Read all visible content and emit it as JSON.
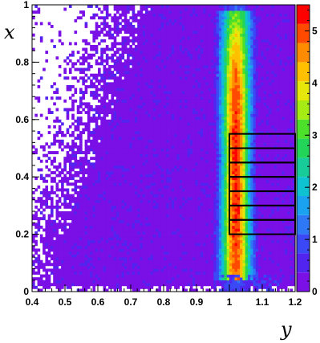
{
  "chart_data": {
    "type": "heatmap",
    "title": "",
    "xlabel": "y",
    "ylabel": "x",
    "xlim": [
      0.4,
      1.2
    ],
    "ylim": [
      0,
      1
    ],
    "x_ticks": [
      "0.4",
      "0.5",
      "0.6",
      "0.7",
      "0.8",
      "0.9",
      "1",
      "1.1",
      "1.2"
    ],
    "y_ticks": [
      "0",
      "0.2",
      "0.4",
      "0.6",
      "0.8",
      "1"
    ],
    "z_scale": "log",
    "z_range": [
      0,
      5.5
    ],
    "z_ticks": [
      "0",
      "1",
      "2",
      "3",
      "4",
      "5"
    ],
    "palette": [
      "#ffffff",
      "#7a0fe6",
      "#5224f0",
      "#3a48f5",
      "#2f78f5",
      "#1aa2f0",
      "#0fc2d2",
      "#18cc9a",
      "#22d458",
      "#4de02a",
      "#a6ec14",
      "#e6e60a",
      "#ffc000",
      "#ff8c00",
      "#ff4a00",
      "#ff0000"
    ],
    "background_fill": "#5a1cf0",
    "ridge": {
      "y_center": 1.02,
      "x_range": [
        0.03,
        0.98
      ],
      "peak_log_count": 5.2
    },
    "overlay_boxes": [
      {
        "y_range": [
          1.0,
          1.2
        ],
        "x_range": [
          0.2,
          0.25
        ]
      },
      {
        "y_range": [
          1.0,
          1.2
        ],
        "x_range": [
          0.25,
          0.3
        ]
      },
      {
        "y_range": [
          1.0,
          1.2
        ],
        "x_range": [
          0.3,
          0.35
        ]
      },
      {
        "y_range": [
          1.0,
          1.2
        ],
        "x_range": [
          0.35,
          0.4
        ]
      },
      {
        "y_range": [
          1.0,
          1.2
        ],
        "x_range": [
          0.4,
          0.45
        ]
      },
      {
        "y_range": [
          1.0,
          1.2
        ],
        "x_range": [
          0.45,
          0.5
        ]
      },
      {
        "y_range": [
          1.0,
          1.2
        ],
        "x_range": [
          0.5,
          0.55
        ]
      }
    ]
  }
}
